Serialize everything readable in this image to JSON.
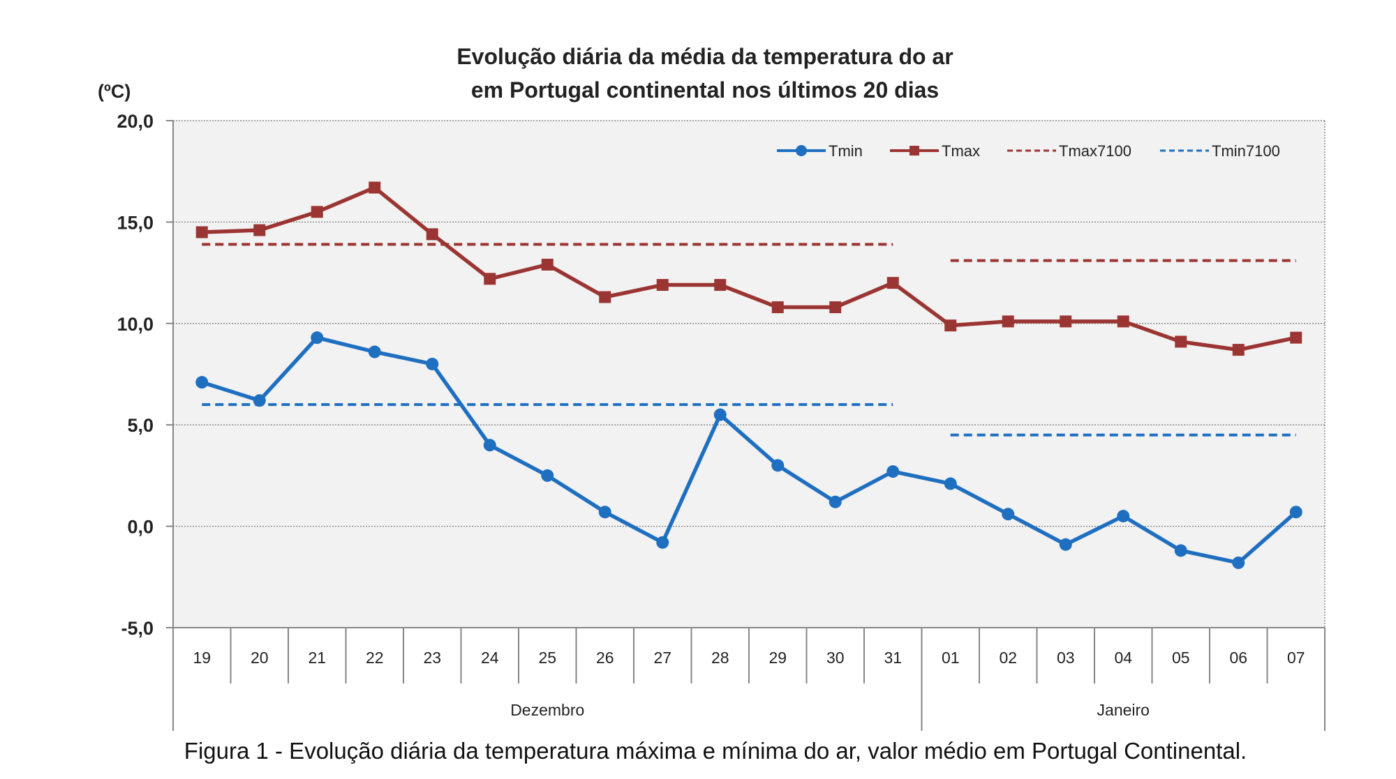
{
  "chart_data": {
    "type": "line",
    "title_lines": [
      "Evolução diária da média da temperatura do ar",
      "em Portugal continental nos últimos 20 dias"
    ],
    "ylabel": "(ºC)",
    "ylim": [
      -5,
      20
    ],
    "yticks": [
      "20,0",
      "15,0",
      "10,0",
      "5,0",
      "0,0",
      "-5,0"
    ],
    "ytick_values": [
      20,
      15,
      10,
      5,
      0,
      -5
    ],
    "categories": [
      "19",
      "20",
      "21",
      "22",
      "23",
      "24",
      "25",
      "26",
      "27",
      "28",
      "29",
      "30",
      "31",
      "01",
      "02",
      "03",
      "04",
      "05",
      "06",
      "07"
    ],
    "months": [
      {
        "label": "Dezembro",
        "from": 0,
        "to": 12
      },
      {
        "label": "Janeiro",
        "from": 13,
        "to": 19
      }
    ],
    "grid": true,
    "legend_position": "top-right",
    "series": [
      {
        "name": "Tmin",
        "color": "#1f6fc1",
        "style": "solid-circle",
        "values": [
          7.1,
          6.2,
          9.3,
          8.6,
          8.0,
          4.0,
          2.5,
          0.7,
          -0.8,
          5.5,
          3.0,
          1.2,
          2.7,
          2.1,
          0.6,
          -0.9,
          0.5,
          -1.2,
          -1.8,
          0.7
        ]
      },
      {
        "name": "Tmax",
        "color": "#9b3533",
        "style": "solid-square",
        "values": [
          14.5,
          14.6,
          15.5,
          16.7,
          14.4,
          12.2,
          12.9,
          11.3,
          11.9,
          11.9,
          10.8,
          10.8,
          12.0,
          9.9,
          10.1,
          10.1,
          10.1,
          9.1,
          8.7,
          9.3
        ]
      },
      {
        "name": "Tmax7100",
        "color": "#9b3533",
        "style": "dashed",
        "segments": [
          {
            "from": 0,
            "to": 12,
            "value": 13.9
          },
          {
            "from": 13,
            "to": 19,
            "value": 13.1
          }
        ]
      },
      {
        "name": "Tmin7100",
        "color": "#1f6fc1",
        "style": "dashed",
        "segments": [
          {
            "from": 0,
            "to": 12,
            "value": 6.0
          },
          {
            "from": 13,
            "to": 19,
            "value": 4.5
          }
        ]
      }
    ]
  },
  "caption": "Figura 1 - Evolução diária da temperatura máxima e mínima do ar, valor médio em Portugal Continental."
}
